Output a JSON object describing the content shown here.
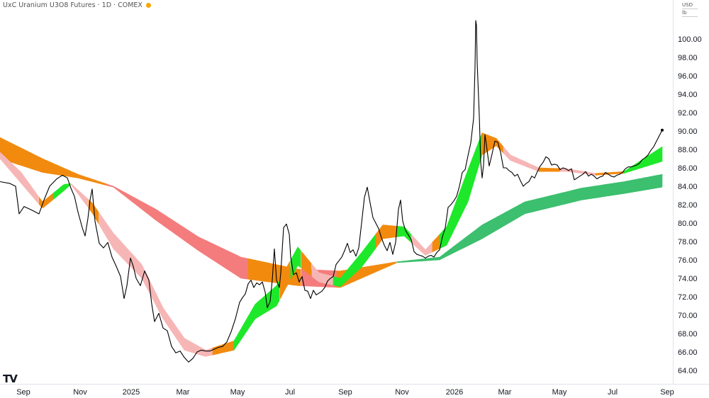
{
  "header": {
    "title": "UxC Uranium U3O8 Futures · 1D · COMEX"
  },
  "units": {
    "currency": "USD",
    "unit": "lb"
  },
  "logo_text": "TV",
  "colors": {
    "price_line": "#000000",
    "ribbon_orange": "#f28a0e",
    "ribbon_bright_green": "#1ee82a",
    "ribbon_dark_green": "#3cbf6e",
    "ribbon_light_pink": "#f7b6b6",
    "ribbon_red_pink": "#f47c7c"
  },
  "chart_data": {
    "type": "line",
    "title": "UxC Uranium U3O8 Futures · 1D · COMEX",
    "ylim": [
      63,
      104
    ],
    "x_ticks": [
      "Sep",
      "Nov",
      "2025",
      "Mar",
      "May",
      "Jul",
      "Sep",
      "Nov",
      "2026",
      "Mar",
      "May",
      "Jul",
      "Sep"
    ],
    "y_ticks": [
      "64.00",
      "66.00",
      "68.00",
      "70.00",
      "72.00",
      "74.00",
      "76.00",
      "78.00",
      "80.00",
      "82.00",
      "84.00",
      "86.00",
      "88.00",
      "90.00",
      "92.00",
      "94.00",
      "96.00",
      "98.00",
      "100.00"
    ],
    "series": [
      {
        "type": "line",
        "points": [
          [
            0,
            84.5
          ],
          [
            14,
            84.3
          ],
          [
            22,
            84.0
          ],
          [
            27,
            81.0
          ],
          [
            34,
            81.8
          ],
          [
            45,
            81.4
          ],
          [
            55,
            81.0
          ],
          [
            62,
            82.5
          ],
          [
            70,
            84.0
          ],
          [
            80,
            84.8
          ],
          [
            88,
            85.2
          ],
          [
            95,
            84.9
          ],
          [
            100,
            83.8
          ],
          [
            105,
            82.9
          ],
          [
            110,
            81.2
          ],
          [
            116,
            79.5
          ],
          [
            120,
            78.6
          ],
          [
            124,
            80.5
          ],
          [
            127,
            82.5
          ],
          [
            130,
            83.7
          ],
          [
            134,
            80.2
          ],
          [
            140,
            77.8
          ],
          [
            146,
            77.3
          ],
          [
            152,
            77.9
          ],
          [
            158,
            76.3
          ],
          [
            164,
            75.3
          ],
          [
            170,
            74.2
          ],
          [
            175,
            71.8
          ],
          [
            179,
            73.2
          ],
          [
            184,
            76.2
          ],
          [
            188,
            75.3
          ],
          [
            192,
            74.0
          ],
          [
            198,
            73.2
          ],
          [
            204,
            74.8
          ],
          [
            210,
            73.8
          ],
          [
            214,
            71.2
          ],
          [
            218,
            69.3
          ],
          [
            224,
            70.2
          ],
          [
            230,
            68.6
          ],
          [
            236,
            68.3
          ],
          [
            242,
            66.6
          ],
          [
            248,
            65.9
          ],
          [
            254,
            66.1
          ],
          [
            260,
            65.4
          ],
          [
            266,
            64.9
          ],
          [
            272,
            65.3
          ],
          [
            278,
            66.0
          ],
          [
            284,
            66.2
          ],
          [
            290,
            66.1
          ],
          [
            296,
            66.1
          ],
          [
            302,
            66.3
          ],
          [
            308,
            66.5
          ],
          [
            314,
            66.6
          ],
          [
            320,
            67.1
          ],
          [
            326,
            68.2
          ],
          [
            332,
            69.6
          ],
          [
            338,
            71.4
          ],
          [
            342,
            71.9
          ],
          [
            346,
            72.3
          ],
          [
            350,
            73.4
          ],
          [
            354,
            73.8
          ],
          [
            358,
            73.0
          ],
          [
            362,
            73.5
          ],
          [
            366,
            73.3
          ],
          [
            370,
            73.6
          ],
          [
            374,
            72.5
          ],
          [
            377,
            70.8
          ],
          [
            381,
            71.5
          ],
          [
            384,
            73.8
          ],
          [
            387,
            77.2
          ],
          [
            390,
            73.8
          ],
          [
            394,
            73.0
          ],
          [
            396,
            74.6
          ],
          [
            400,
            79.5
          ],
          [
            404,
            79.9
          ],
          [
            408,
            78.8
          ],
          [
            410,
            76.3
          ],
          [
            414,
            74.4
          ],
          [
            418,
            74.6
          ],
          [
            422,
            73.6
          ],
          [
            426,
            74.2
          ],
          [
            430,
            72.7
          ],
          [
            434,
            72.6
          ],
          [
            438,
            71.8
          ],
          [
            442,
            72.7
          ],
          [
            446,
            72.2
          ],
          [
            450,
            72.4
          ],
          [
            454,
            72.6
          ],
          [
            458,
            73.0
          ],
          [
            462,
            73.7
          ],
          [
            466,
            74.0
          ],
          [
            470,
            74.2
          ],
          [
            474,
            75.5
          ],
          [
            478,
            75.9
          ],
          [
            482,
            76.3
          ],
          [
            486,
            77.0
          ],
          [
            490,
            77.8
          ],
          [
            494,
            76.8
          ],
          [
            498,
            77.1
          ],
          [
            502,
            76.4
          ],
          [
            506,
            77.3
          ],
          [
            510,
            80.0
          ],
          [
            514,
            82.8
          ],
          [
            518,
            83.9
          ],
          [
            522,
            82.2
          ],
          [
            526,
            80.6
          ],
          [
            530,
            80.0
          ],
          [
            534,
            79.4
          ],
          [
            538,
            78.4
          ],
          [
            542,
            77.6
          ],
          [
            546,
            77.0
          ],
          [
            550,
            77.9
          ],
          [
            554,
            76.6
          ],
          [
            558,
            77.9
          ],
          [
            562,
            81.5
          ],
          [
            565,
            82.5
          ],
          [
            568,
            80.2
          ],
          [
            572,
            79.2
          ],
          [
            576,
            78.7
          ],
          [
            580,
            78.2
          ],
          [
            584,
            76.9
          ],
          [
            588,
            76.6
          ],
          [
            592,
            76.5
          ],
          [
            596,
            76.4
          ],
          [
            600,
            76.2
          ],
          [
            604,
            76.4
          ],
          [
            608,
            76.5
          ],
          [
            612,
            76.3
          ],
          [
            616,
            76.8
          ],
          [
            620,
            77.1
          ],
          [
            624,
            78.5
          ],
          [
            628,
            79.5
          ],
          [
            632,
            81.7
          ],
          [
            636,
            82.0
          ],
          [
            640,
            82.4
          ],
          [
            644,
            82.9
          ],
          [
            648,
            84.0
          ],
          [
            652,
            85.5
          ],
          [
            656,
            85.8
          ],
          [
            660,
            87.3
          ],
          [
            664,
            88.7
          ],
          [
            668,
            91.4
          ],
          [
            670,
            97.0
          ],
          [
            671,
            102.0
          ],
          [
            672,
            101.5
          ],
          [
            673,
            97.5
          ],
          [
            676,
            91.7
          ],
          [
            678,
            86.6
          ],
          [
            680,
            84.9
          ],
          [
            682,
            86.3
          ],
          [
            684,
            89.6
          ],
          [
            686,
            88.5
          ],
          [
            690,
            86.2
          ],
          [
            694,
            87.5
          ],
          [
            698,
            88.9
          ],
          [
            702,
            88.8
          ],
          [
            706,
            87.7
          ],
          [
            710,
            86.0
          ],
          [
            714,
            86.0
          ],
          [
            718,
            85.7
          ],
          [
            722,
            85.5
          ],
          [
            726,
            85.1
          ],
          [
            730,
            85.3
          ],
          [
            734,
            84.6
          ],
          [
            738,
            84.0
          ],
          [
            742,
            84.3
          ],
          [
            746,
            84.5
          ],
          [
            750,
            85.1
          ],
          [
            754,
            84.9
          ],
          [
            758,
            85.6
          ],
          [
            762,
            86.2
          ],
          [
            766,
            86.6
          ],
          [
            770,
            87.2
          ],
          [
            774,
            87.0
          ],
          [
            778,
            86.3
          ],
          [
            782,
            86.4
          ],
          [
            786,
            86.3
          ],
          [
            790,
            85.8
          ],
          [
            794,
            86.0
          ],
          [
            798,
            85.9
          ],
          [
            802,
            85.7
          ],
          [
            806,
            85.9
          ],
          [
            810,
            84.7
          ],
          [
            814,
            84.9
          ],
          [
            818,
            85.1
          ],
          [
            822,
            85.3
          ],
          [
            826,
            85.6
          ],
          [
            830,
            85.1
          ],
          [
            834,
            85.3
          ],
          [
            838,
            85.1
          ],
          [
            842,
            84.8
          ],
          [
            846,
            85.0
          ],
          [
            850,
            85.1
          ],
          [
            854,
            85.5
          ],
          [
            858,
            85.3
          ],
          [
            862,
            85.1
          ],
          [
            866,
            85.0
          ],
          [
            870,
            85.2
          ],
          [
            874,
            85.3
          ],
          [
            878,
            85.5
          ],
          [
            882,
            85.9
          ],
          [
            886,
            86.1
          ],
          [
            890,
            86.1
          ],
          [
            894,
            86.2
          ],
          [
            898,
            86.3
          ],
          [
            902,
            86.5
          ],
          [
            906,
            86.9
          ],
          [
            910,
            87.1
          ],
          [
            914,
            87.4
          ],
          [
            918,
            87.9
          ],
          [
            922,
            88.3
          ],
          [
            926,
            88.9
          ],
          [
            930,
            89.5
          ],
          [
            934,
            90.1
          ]
        ]
      }
    ],
    "ribbons": [
      {
        "type": "band",
        "name_hint": "slow",
        "upper_nodes": [
          [
            0,
            89.3
          ],
          [
            60,
            87.0
          ],
          [
            110,
            85.3
          ],
          [
            160,
            84.0
          ],
          [
            220,
            81.5
          ],
          [
            280,
            78.5
          ],
          [
            340,
            76.3
          ],
          [
            420,
            75.0
          ],
          [
            480,
            74.8
          ],
          [
            560,
            75.8
          ],
          [
            620,
            76.3
          ],
          [
            680,
            79.8
          ],
          [
            740,
            82.3
          ],
          [
            820,
            83.8
          ],
          [
            880,
            84.5
          ],
          [
            934,
            85.3
          ]
        ],
        "lower_nodes": [
          [
            0,
            87.0
          ],
          [
            60,
            85.5
          ],
          [
            110,
            84.9
          ],
          [
            160,
            83.9
          ],
          [
            220,
            80.3
          ],
          [
            280,
            77.0
          ],
          [
            340,
            74.0
          ],
          [
            420,
            73.2
          ],
          [
            480,
            73.0
          ],
          [
            560,
            75.7
          ],
          [
            620,
            76.0
          ],
          [
            680,
            78.3
          ],
          [
            740,
            81.0
          ],
          [
            820,
            82.5
          ],
          [
            880,
            83.2
          ],
          [
            934,
            83.9
          ]
        ]
      },
      {
        "type": "band",
        "name_hint": "fast",
        "upper_nodes": [
          [
            0,
            87.7
          ],
          [
            30,
            85.5
          ],
          [
            60,
            82.3
          ],
          [
            90,
            84.2
          ],
          [
            100,
            84.3
          ],
          [
            130,
            82.2
          ],
          [
            160,
            78.9
          ],
          [
            200,
            75.5
          ],
          [
            230,
            70.8
          ],
          [
            260,
            67.5
          ],
          [
            290,
            66.2
          ],
          [
            330,
            67.2
          ],
          [
            360,
            71.2
          ],
          [
            390,
            73.2
          ],
          [
            420,
            77.4
          ],
          [
            450,
            74.6
          ],
          [
            480,
            74.0
          ],
          [
            510,
            76.8
          ],
          [
            540,
            79.8
          ],
          [
            570,
            79.6
          ],
          [
            600,
            77.1
          ],
          [
            630,
            79.6
          ],
          [
            660,
            85.8
          ],
          [
            680,
            89.8
          ],
          [
            700,
            89.2
          ],
          [
            720,
            87.4
          ],
          [
            760,
            86.0
          ],
          [
            800,
            85.9
          ],
          [
            840,
            85.4
          ],
          [
            880,
            85.6
          ],
          [
            934,
            88.3
          ]
        ],
        "lower_nodes": [
          [
            0,
            87.0
          ],
          [
            30,
            84.3
          ],
          [
            60,
            81.6
          ],
          [
            90,
            83.5
          ],
          [
            100,
            84.2
          ],
          [
            130,
            81.1
          ],
          [
            160,
            77.2
          ],
          [
            200,
            74.0
          ],
          [
            230,
            69.6
          ],
          [
            260,
            66.2
          ],
          [
            290,
            65.5
          ],
          [
            330,
            66.2
          ],
          [
            360,
            69.6
          ],
          [
            390,
            71.0
          ],
          [
            420,
            75.4
          ],
          [
            450,
            73.6
          ],
          [
            480,
            73.1
          ],
          [
            510,
            75.2
          ],
          [
            540,
            78.3
          ],
          [
            570,
            78.6
          ],
          [
            600,
            76.5
          ],
          [
            630,
            77.6
          ],
          [
            660,
            82.3
          ],
          [
            680,
            87.4
          ],
          [
            700,
            88.4
          ],
          [
            720,
            86.8
          ],
          [
            760,
            85.6
          ],
          [
            800,
            85.6
          ],
          [
            840,
            85.2
          ],
          [
            880,
            85.4
          ],
          [
            934,
            86.7
          ]
        ]
      }
    ]
  }
}
